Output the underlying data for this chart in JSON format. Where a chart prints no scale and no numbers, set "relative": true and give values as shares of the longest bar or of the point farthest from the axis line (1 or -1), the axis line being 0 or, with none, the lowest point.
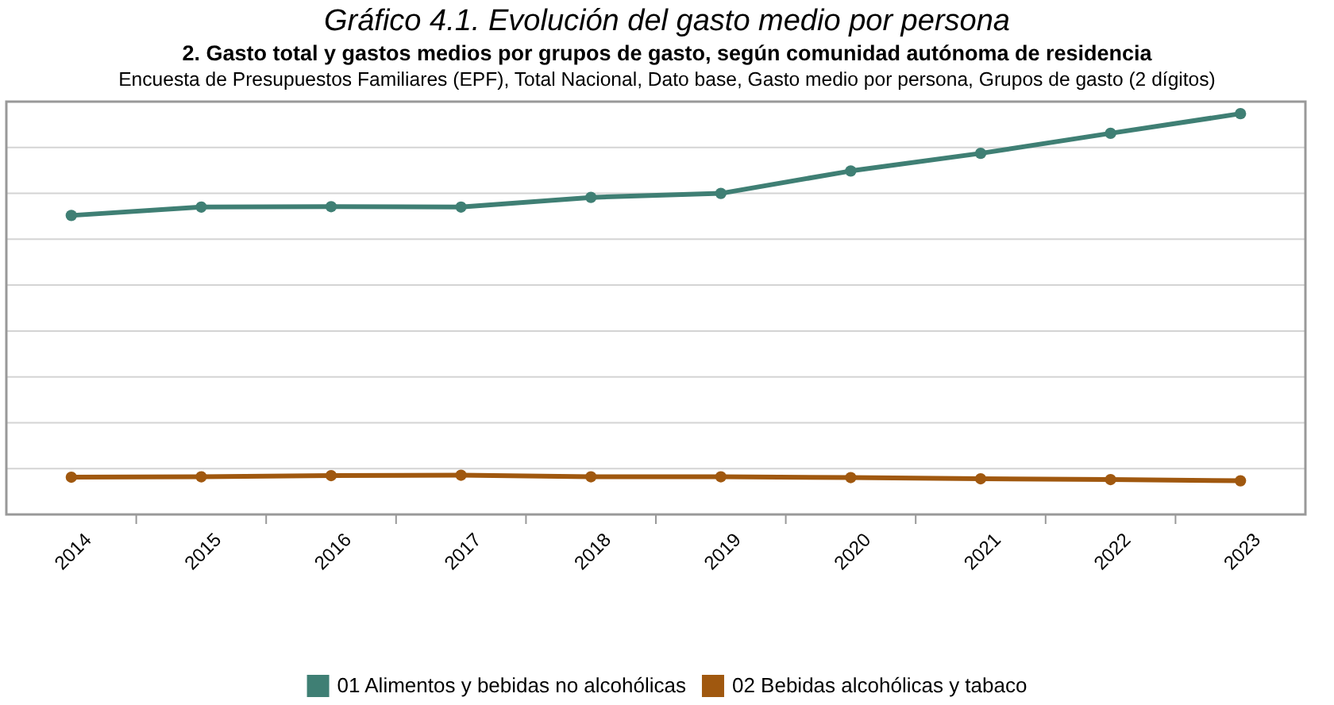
{
  "chart_data": {
    "type": "line",
    "title": "Gráfico 4.1. Evolución del gasto medio por persona",
    "subtitle": "2. Gasto total y gastos medios por grupos de gasto, según comunidad autónoma de residencia",
    "annotations": [
      "Encuesta de Presupuestos Familiares (EPF), Total Nacional, Dato base, Gasto medio por persona, Grupos de gasto (2 dígitos)"
    ],
    "relative": true,
    "grid": true,
    "legend": "bottom",
    "marker": "circle",
    "categories": [
      "2014",
      "2015",
      "2016",
      "2017",
      "2018",
      "2019",
      "2020",
      "2021",
      "2022",
      "2023"
    ],
    "series": [
      {
        "name": "01 Alimentos y bebidas no alcohólicas",
        "color": "#3f7f74",
        "values": [
          0.746,
          0.767,
          0.768,
          0.767,
          0.791,
          0.801,
          0.857,
          0.901,
          0.951,
          1
        ]
      },
      {
        "name": "02 Bebidas alcohólicas y tabaco",
        "color": "#a0580f",
        "values": [
          0.093,
          0.094,
          0.097,
          0.098,
          0.094,
          0.094,
          0.092,
          0.089,
          0.087,
          0.084
        ]
      }
    ]
  }
}
